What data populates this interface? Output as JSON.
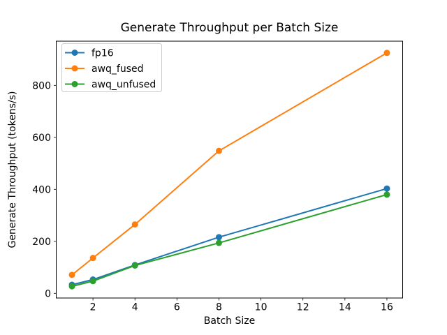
{
  "chart_data": {
    "type": "line",
    "title": "Generate Throughput per Batch Size",
    "xlabel": "Batch Size",
    "ylabel": "Generate Throughput (tokens/s)",
    "x": [
      1,
      2,
      4,
      8,
      16
    ],
    "series": [
      {
        "name": "fp16",
        "color": "#1f77b4",
        "values": [
          33,
          53,
          109,
          216,
          403
        ]
      },
      {
        "name": "awq_fused",
        "color": "#ff7f0e",
        "values": [
          71,
          136,
          265,
          548,
          925
        ]
      },
      {
        "name": "awq_unfused",
        "color": "#2ca02c",
        "values": [
          27,
          47,
          107,
          194,
          380
        ]
      }
    ],
    "xticks": [
      2,
      4,
      6,
      8,
      10,
      12,
      14,
      16
    ],
    "yticks": [
      0,
      200,
      400,
      600,
      800
    ],
    "xlim": [
      0.25,
      16.75
    ],
    "ylim": [
      -18,
      970
    ],
    "grid": false,
    "marker": "o",
    "legend_position": "upper left",
    "colors": {
      "axis": "#000000",
      "legend_border": "#cccccc",
      "background": "#ffffff"
    }
  }
}
